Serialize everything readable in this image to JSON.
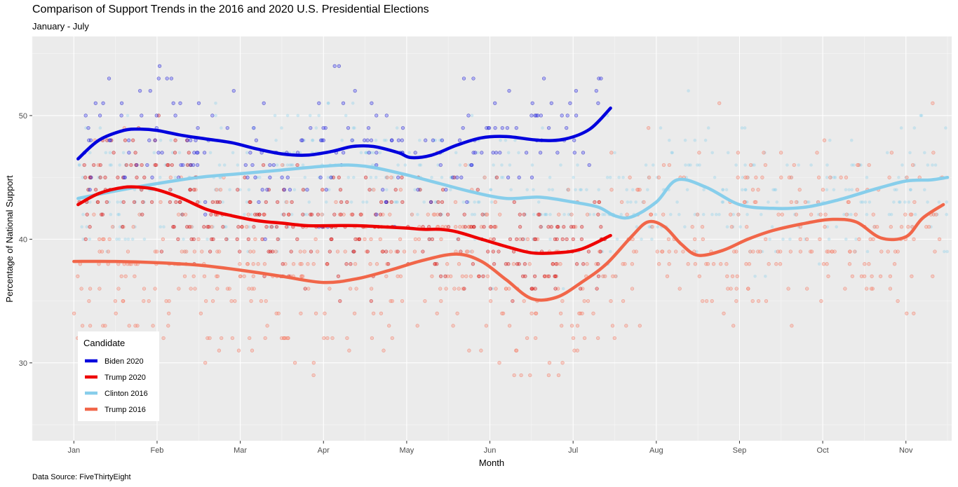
{
  "header": {
    "title": "Comparison of Support Trends in the 2016 and 2020 U.S. Presidential Elections",
    "subtitle": "January - July"
  },
  "caption": "Data Source: FiveThirtyEight",
  "chart_data": {
    "type": "line",
    "title": "Comparison of Support Trends in the 2016 and 2020 U.S. Presidential Elections",
    "subtitle": "January - July",
    "xlabel": "Month",
    "ylabel": "Percentage of National Support",
    "x_ticks": [
      "Jan",
      "Feb",
      "Mar",
      "Apr",
      "May",
      "Jun",
      "Jul",
      "Aug",
      "Sep",
      "Oct",
      "Nov"
    ],
    "y_ticks": [
      30,
      40,
      50
    ],
    "ylim": [
      23.7,
      56.4
    ],
    "xlim": [
      -0.5,
      10.55
    ],
    "grid": true,
    "legend": {
      "title": "Candidate",
      "position": "bottom-left"
    },
    "series": [
      {
        "name": "Biden 2020",
        "color": "#0000dd",
        "x": [
          0.05,
          0.3,
          0.6,
          0.8,
          1.0,
          1.3,
          1.6,
          1.9,
          2.2,
          2.5,
          2.8,
          3.1,
          3.35,
          3.6,
          3.9,
          4.05,
          4.3,
          4.6,
          4.9,
          5.2,
          5.6,
          5.9,
          6.2,
          6.45
        ],
        "y": [
          46.5,
          48.0,
          48.8,
          48.9,
          48.8,
          48.4,
          48.1,
          47.8,
          47.3,
          46.9,
          46.8,
          47.1,
          47.5,
          47.5,
          47.0,
          46.6,
          46.8,
          47.6,
          48.2,
          48.3,
          48.0,
          48.1,
          48.9,
          50.6
        ]
      },
      {
        "name": "Trump 2020",
        "color": "#ee0000",
        "x": [
          0.05,
          0.3,
          0.6,
          0.8,
          1.0,
          1.3,
          1.6,
          1.9,
          2.2,
          2.5,
          2.8,
          3.1,
          3.4,
          3.7,
          4.0,
          4.2,
          4.4,
          4.6,
          4.9,
          5.2,
          5.5,
          5.8,
          6.1,
          6.45
        ],
        "y": [
          42.8,
          43.7,
          44.2,
          44.2,
          44.0,
          43.3,
          42.4,
          41.9,
          41.5,
          41.3,
          41.1,
          41.1,
          41.1,
          41.0,
          40.9,
          40.8,
          40.8,
          40.6,
          40.0,
          39.4,
          38.9,
          38.9,
          39.2,
          40.3
        ]
      },
      {
        "name": "Clinton 2016",
        "color": "#87ceeb",
        "x": [
          0.05,
          0.5,
          1.0,
          1.5,
          2.0,
          2.5,
          3.0,
          3.3,
          3.6,
          4.0,
          4.4,
          4.8,
          5.2,
          5.6,
          6.0,
          6.3,
          6.5,
          6.7,
          7.0,
          7.25,
          7.6,
          8.0,
          8.4,
          8.8,
          9.2,
          9.6,
          10.0,
          10.3,
          10.5
        ],
        "y": [
          43.3,
          43.9,
          44.5,
          45.0,
          45.3,
          45.6,
          45.9,
          46.0,
          45.8,
          45.2,
          44.5,
          43.8,
          43.3,
          43.4,
          43.0,
          42.6,
          41.9,
          41.8,
          43.0,
          44.8,
          44.2,
          42.8,
          42.5,
          42.6,
          43.2,
          44.0,
          44.7,
          44.8,
          45.0
        ]
      },
      {
        "name": "Trump 2016",
        "color": "#f16649",
        "x": [
          0.0,
          0.5,
          1.0,
          1.5,
          2.0,
          2.5,
          3.0,
          3.4,
          3.8,
          4.2,
          4.6,
          4.9,
          5.2,
          5.5,
          5.8,
          6.1,
          6.4,
          6.7,
          6.9,
          7.1,
          7.3,
          7.5,
          7.8,
          8.1,
          8.4,
          8.8,
          9.1,
          9.4,
          9.7,
          10.0,
          10.2,
          10.45
        ],
        "y": [
          38.2,
          38.2,
          38.1,
          37.9,
          37.5,
          37.0,
          36.5,
          36.8,
          37.5,
          38.3,
          38.8,
          38.2,
          36.7,
          35.2,
          35.3,
          36.5,
          38.0,
          40.2,
          41.4,
          41.0,
          39.6,
          38.7,
          39.1,
          40.0,
          40.7,
          41.3,
          41.6,
          41.4,
          40.1,
          40.2,
          41.7,
          42.8
        ]
      }
    ]
  }
}
